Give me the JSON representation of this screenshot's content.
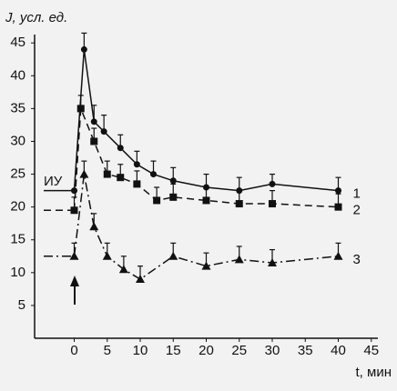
{
  "chart_data": {
    "type": "scatter",
    "y_label": "J, усл. ед.",
    "x_label": "t, мин",
    "annotation": "ИУ",
    "xlim": [
      -6,
      46
    ],
    "ylim": [
      0,
      46
    ],
    "xticks": [
      0,
      5,
      10,
      15,
      20,
      25,
      30,
      35,
      40,
      45
    ],
    "yticks": [
      5,
      10,
      15,
      20,
      25,
      30,
      35,
      40,
      45
    ],
    "color": "#111111",
    "series": [
      {
        "name": "1",
        "marker": "circle",
        "dash": "solid",
        "x": [
          0,
          1.5,
          3,
          4.5,
          7,
          9.5,
          12,
          15,
          20,
          25,
          30,
          40
        ],
        "values": [
          22.5,
          44,
          33,
          31.5,
          29,
          26.5,
          25,
          24,
          23,
          22.5,
          23.5,
          22.5
        ],
        "errors": [
          0,
          2.5,
          2.5,
          2.5,
          2,
          2,
          2,
          2,
          2,
          2,
          1.5,
          2
        ]
      },
      {
        "name": "2",
        "marker": "square",
        "dash": "dashed",
        "x": [
          0,
          1,
          3,
          5,
          7,
          9.5,
          12.5,
          15,
          20,
          25,
          30,
          40
        ],
        "values": [
          19.5,
          35,
          30,
          25,
          24.5,
          23.5,
          21,
          21.5,
          21,
          20.5,
          20.5,
          20
        ],
        "errors": [
          2,
          2,
          2,
          2,
          2,
          2,
          2,
          2,
          2,
          2,
          2,
          2
        ]
      },
      {
        "name": "3",
        "marker": "triangle",
        "dash": "dashdot",
        "x": [
          0,
          1.5,
          3,
          5,
          7.5,
          10,
          15,
          20,
          25,
          30,
          40
        ],
        "values": [
          12.5,
          25,
          17,
          12.5,
          10.5,
          9,
          12.5,
          11,
          12,
          11.5,
          12.5
        ],
        "errors": [
          2,
          2,
          2,
          2,
          2,
          2,
          2,
          2,
          2,
          2,
          2
        ]
      }
    ]
  }
}
